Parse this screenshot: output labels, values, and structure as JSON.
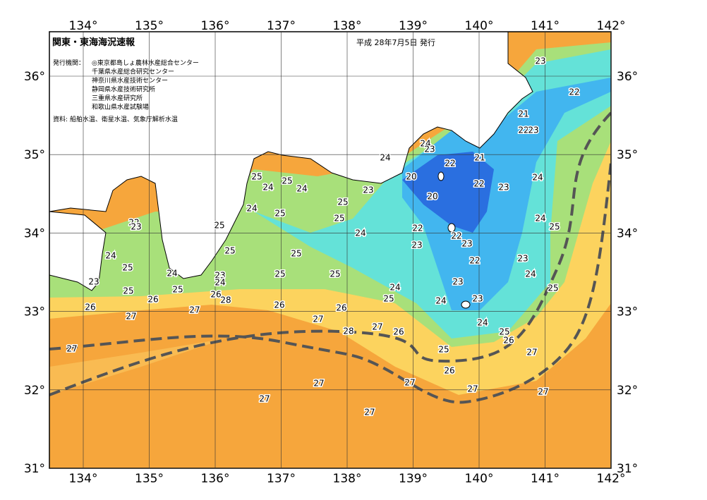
{
  "header": {
    "title": "関東・東海海況速報",
    "issue_date": "平成 28年7月5日 発行",
    "issuers_label": "発行機関：",
    "issuers": [
      "◎東京都島しょ農林水産総合センター",
      "千葉県水産総合研究センター",
      "神奈川県水産技術センター",
      "静岡県水産技術研究所",
      "三重県水産研究所",
      "和歌山県水産試験場"
    ],
    "source": "資料: 船舶水温、衛星水温、気象庁解析水温"
  },
  "map": {
    "lon_ticks": [
      {
        "value": 134,
        "label": "134°"
      },
      {
        "value": 135,
        "label": "135°"
      },
      {
        "value": 136,
        "label": "136°"
      },
      {
        "value": 137,
        "label": "137°"
      },
      {
        "value": 138,
        "label": "138°"
      },
      {
        "value": 139,
        "label": "139°"
      },
      {
        "value": 140,
        "label": "140°"
      },
      {
        "value": 141,
        "label": "141°"
      },
      {
        "value": 142,
        "label": "142°"
      }
    ],
    "lat_ticks": [
      {
        "value": 31,
        "label": "31°"
      },
      {
        "value": 32,
        "label": "32°"
      },
      {
        "value": 33,
        "label": "33°"
      },
      {
        "value": 34,
        "label": "34°"
      },
      {
        "value": 35,
        "label": "35°"
      },
      {
        "value": 36,
        "label": "36°"
      }
    ],
    "isotherm_labels": [
      23,
      22,
      21,
      22,
      23,
      24,
      24,
      23,
      21,
      22,
      20,
      24,
      22,
      23,
      20,
      23,
      25,
      25,
      24,
      24,
      24,
      25,
      25,
      25,
      25,
      22,
      23,
      24,
      25,
      22,
      24,
      22,
      23,
      23,
      25,
      25,
      24,
      22,
      23,
      25,
      24,
      25,
      23,
      25,
      24,
      24,
      23,
      23,
      25,
      25,
      24,
      25,
      26,
      25,
      24,
      23,
      26,
      28,
      26,
      27,
      26,
      26,
      27,
      27,
      24,
      27,
      28,
      26,
      25,
      26,
      27,
      25,
      27,
      26,
      27,
      27,
      27,
      27,
      27,
      27
    ]
  }
}
